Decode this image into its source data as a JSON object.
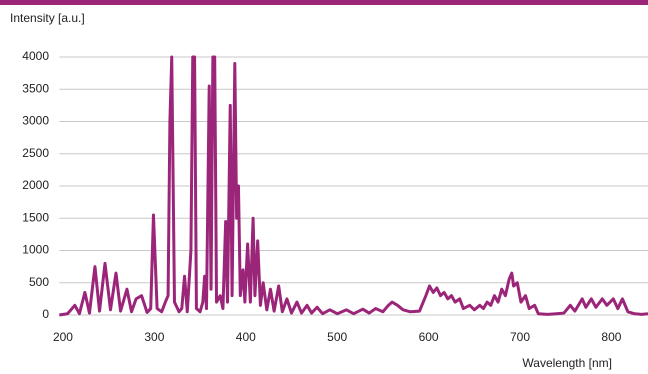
{
  "chart_data": {
    "type": "line",
    "y_label": "Intensity [a.u.]",
    "x_label": "Wavelength [nm]",
    "color": "#9b2579",
    "grid": true,
    "xlim": [
      196,
      840
    ],
    "ylim": [
      0,
      4000
    ],
    "xticks": [
      200,
      300,
      400,
      500,
      600,
      700,
      800
    ],
    "yticks": [
      0,
      500,
      1000,
      1500,
      2000,
      2500,
      3000,
      3500,
      4000
    ],
    "x": [
      196,
      205,
      213,
      218,
      224,
      229,
      235,
      240,
      246,
      252,
      258,
      263,
      270,
      275,
      280,
      286,
      292,
      296,
      299,
      303,
      308,
      312,
      315,
      317,
      319,
      322,
      327,
      330,
      333,
      336,
      340,
      342,
      344,
      346,
      350,
      353,
      355,
      357,
      360,
      362,
      364,
      366,
      368,
      372,
      375,
      378,
      380,
      383,
      385,
      388,
      390,
      392,
      394,
      397,
      399,
      402,
      405,
      408,
      410,
      413,
      416,
      419,
      423,
      427,
      431,
      436,
      440,
      445,
      450,
      456,
      461,
      467,
      472,
      478,
      484,
      492,
      500,
      510,
      518,
      528,
      535,
      542,
      550,
      556,
      560,
      566,
      572,
      580,
      590,
      597,
      601,
      605,
      609,
      613,
      617,
      621,
      625,
      629,
      634,
      638,
      645,
      650,
      656,
      660,
      664,
      668,
      672,
      676,
      680,
      684,
      688,
      691,
      693,
      697,
      701,
      706,
      710,
      716,
      720,
      730,
      740,
      748,
      755,
      760,
      768,
      772,
      778,
      783,
      790,
      795,
      802,
      807,
      812,
      818,
      825,
      833,
      840
    ],
    "values": [
      0,
      20,
      150,
      20,
      350,
      30,
      750,
      60,
      800,
      80,
      650,
      60,
      400,
      50,
      250,
      300,
      40,
      100,
      1550,
      100,
      50,
      200,
      300,
      3000,
      4000,
      200,
      50,
      100,
      600,
      50,
      1000,
      4000,
      4000,
      100,
      50,
      200,
      600,
      100,
      3550,
      400,
      4000,
      4000,
      200,
      300,
      100,
      1450,
      200,
      3250,
      300,
      3900,
      1500,
      2000,
      300,
      700,
      200,
      1100,
      200,
      1500,
      300,
      1150,
      150,
      500,
      80,
      400,
      60,
      450,
      50,
      250,
      30,
      200,
      30,
      150,
      30,
      120,
      20,
      80,
      20,
      80,
      20,
      90,
      30,
      100,
      50,
      150,
      200,
      150,
      80,
      50,
      60,
      300,
      450,
      350,
      420,
      300,
      350,
      250,
      300,
      200,
      250,
      100,
      150,
      80,
      150,
      100,
      200,
      150,
      300,
      200,
      400,
      300,
      550,
      650,
      450,
      500,
      200,
      300,
      100,
      150,
      20,
      10,
      20,
      30,
      150,
      60,
      250,
      120,
      250,
      120,
      250,
      150,
      250,
      100,
      250,
      50,
      20,
      10,
      20
    ]
  }
}
